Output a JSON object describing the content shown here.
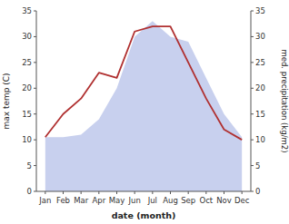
{
  "chart_data": {
    "type": "line",
    "categories": [
      "Jan",
      "Feb",
      "Mar",
      "Apr",
      "May",
      "Jun",
      "Jul",
      "Aug",
      "Sep",
      "Oct",
      "Nov",
      "Dec"
    ],
    "xlabel": "date (month)",
    "ylabel": "max temp (C)",
    "y2label": "med. precipitation (kg/m2)",
    "series": [
      {
        "type": "area",
        "axis": "y2",
        "color": "#c8d0ee",
        "values": [
          10.5,
          10.5,
          11,
          14,
          20,
          30,
          33,
          30,
          29,
          22,
          15,
          10.5
        ]
      },
      {
        "type": "line",
        "color": "#b03030",
        "values": [
          10.5,
          15,
          18,
          23,
          22,
          31,
          32,
          32,
          25,
          18,
          12,
          10
        ]
      }
    ],
    "ylim": [
      0,
      35
    ],
    "yticks": [
      0,
      5,
      10,
      15,
      20,
      25,
      30,
      35
    ],
    "y2lim": [
      0,
      35
    ],
    "y2ticks": [
      0,
      5,
      10,
      15,
      20,
      25,
      30,
      35
    ],
    "grid": false
  }
}
